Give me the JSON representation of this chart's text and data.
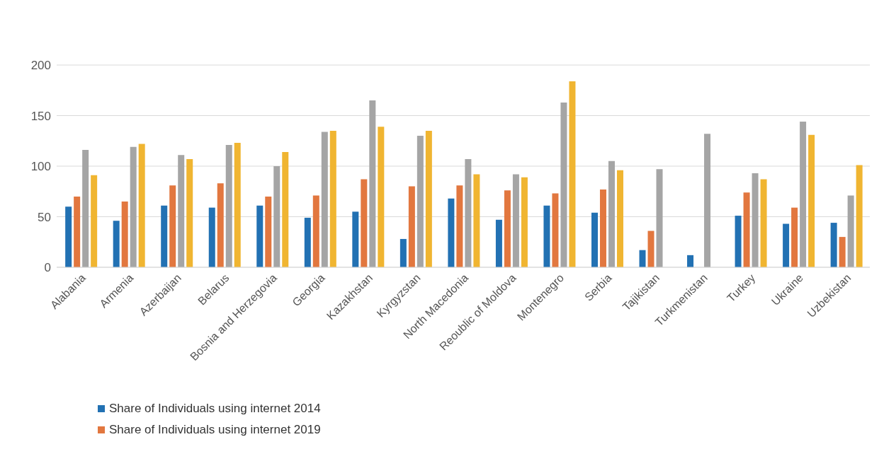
{
  "chart_data": {
    "type": "bar",
    "categories": [
      "Alabania",
      "Armenia",
      "Azerbaijan",
      "Belarus",
      "Bosnia and Herzegovia",
      "Georgia",
      "Kazakhstan",
      "Kyrgyzstan",
      "North Macedonia",
      "Reoublic of Moldova",
      "Montenegro",
      "Serbia",
      "Tajikistan",
      "Turkmenistan",
      "Turkey",
      "Ukraine",
      "Uzbekistan"
    ],
    "series": [
      {
        "name": "Share of Individuals using internet 2014",
        "color": "#2271b3",
        "values": [
          60,
          46,
          61,
          59,
          61,
          49,
          55,
          28,
          68,
          47,
          61,
          54,
          17,
          12,
          51,
          43,
          44
        ]
      },
      {
        "name": "Share of Individuals using internet 2019",
        "color": "#e2773f",
        "values": [
          70,
          65,
          81,
          83,
          70,
          71,
          87,
          80,
          81,
          76,
          73,
          77,
          36,
          null,
          74,
          59,
          30
        ]
      },
      {
        "color": "#a5a5a5",
        "values": [
          116,
          119,
          111,
          121,
          100,
          134,
          165,
          130,
          107,
          92,
          163,
          105,
          97,
          132,
          93,
          144,
          71
        ]
      },
      {
        "color": "#f0b531",
        "values": [
          91,
          122,
          107,
          123,
          114,
          135,
          139,
          135,
          92,
          89,
          184,
          96,
          null,
          null,
          87,
          131,
          101
        ]
      }
    ],
    "ylim": [
      0,
      200
    ],
    "yticks": [
      0,
      50,
      100,
      150,
      200
    ],
    "grid": "y",
    "legend": "bottom left"
  }
}
